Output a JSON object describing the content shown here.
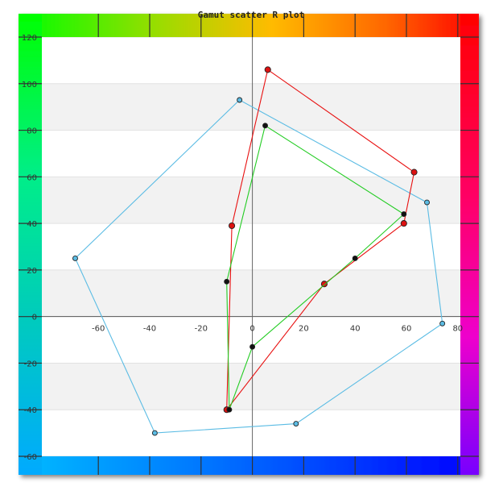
{
  "chart_data": {
    "type": "scatter",
    "title": "Gamut scatter R plot",
    "xlabel": "",
    "ylabel": "",
    "xlim": [
      -82,
      81
    ],
    "ylim": [
      -60,
      120
    ],
    "x_ticks": [
      "-60",
      "-40",
      "-20",
      "0",
      "20",
      "40",
      "60",
      "80"
    ],
    "x_tick_values": [
      -60,
      -40,
      -20,
      0,
      20,
      40,
      60,
      80
    ],
    "y_ticks": [
      "120",
      "100",
      "80",
      "60",
      "40",
      "20",
      "0",
      "-20",
      "-40",
      "-60"
    ],
    "y_tick_values": [
      120,
      100,
      80,
      60,
      40,
      20,
      0,
      -20,
      -40,
      -60
    ],
    "grid": true,
    "series": [
      {
        "color": "#5bbce4",
        "marker_color": "#5bbce4",
        "closed": true,
        "points": [
          [
            -5,
            93
          ],
          [
            68,
            49
          ],
          [
            74,
            -3
          ],
          [
            17,
            -46
          ],
          [
            -38,
            -50
          ],
          [
            -69,
            25
          ]
        ]
      },
      {
        "color": "#e81010",
        "marker_color": "#dd1111",
        "closed": true,
        "points": [
          [
            6,
            106
          ],
          [
            63,
            62
          ],
          [
            59,
            40
          ],
          [
            28,
            14
          ],
          [
            -10,
            -40
          ],
          [
            -8,
            39
          ]
        ]
      },
      {
        "color": "#22cc22",
        "marker_color": "#111111",
        "closed": true,
        "points": [
          [
            5,
            82
          ],
          [
            59,
            44
          ],
          [
            40,
            25
          ],
          [
            0,
            -13
          ],
          [
            -9,
            -40
          ],
          [
            -10,
            15
          ]
        ]
      }
    ]
  }
}
